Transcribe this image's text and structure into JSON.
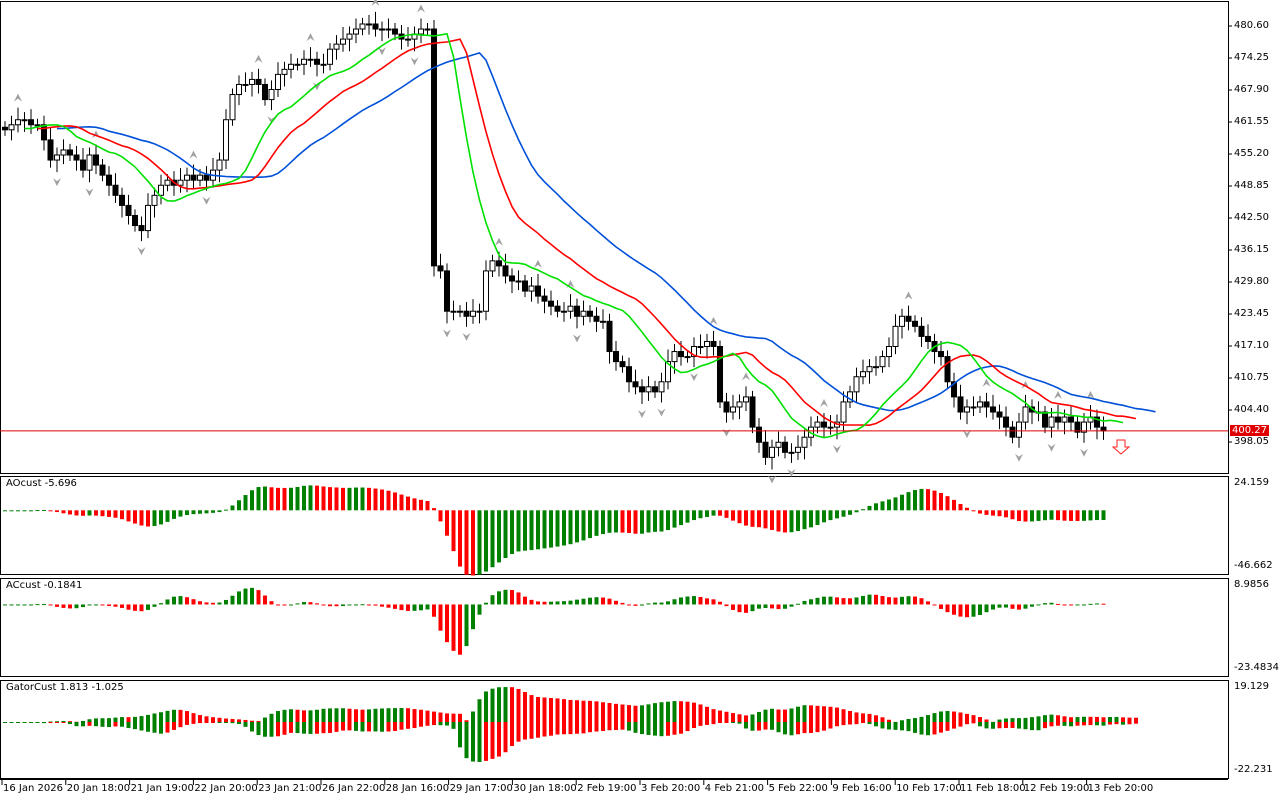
{
  "chart_data": {
    "type": "candlestick",
    "last_price": "400.27",
    "y_ticks": [
      "480.60",
      "474.25",
      "467.90",
      "461.55",
      "455.20",
      "448.85",
      "442.50",
      "436.15",
      "429.80",
      "423.45",
      "417.10",
      "410.75",
      "404.40",
      "398.05"
    ],
    "ylim": [
      393.0,
      484.0
    ],
    "x_ticks": [
      "16 Jan 2026",
      "20 Jan 18:00",
      "21 Jan 19:00",
      "22 Jan 20:00",
      "23 Jan 21:00",
      "26 Jan 22:00",
      "28 Jan 16:00",
      "29 Jan 17:00",
      "30 Jan 18:00",
      "2 Feb 19:00",
      "3 Feb 20:00",
      "4 Feb 21:00",
      "5 Feb 22:00",
      "9 Feb 16:00",
      "10 Feb 17:00",
      "11 Feb 18:00",
      "12 Feb 19:00",
      "13 Feb 20:00"
    ],
    "closes": [
      460,
      461,
      462,
      462,
      461,
      461,
      458,
      454,
      455,
      456,
      455,
      454,
      452,
      455,
      453,
      451,
      449,
      447,
      445,
      443,
      441,
      440,
      445,
      447,
      449,
      450,
      449,
      450,
      451,
      450,
      451,
      450,
      452,
      454,
      462,
      467,
      469,
      469,
      470,
      469,
      466,
      468,
      471,
      472,
      473,
      473,
      474,
      474,
      473,
      473,
      476,
      477,
      478,
      479,
      480,
      481,
      481,
      480,
      480,
      480,
      479,
      478,
      478,
      479,
      480,
      480,
      433,
      432,
      424,
      424,
      424,
      423,
      424,
      424,
      432,
      434,
      433,
      431,
      430,
      430,
      428,
      429,
      427,
      426,
      425,
      424,
      424,
      425,
      423,
      424,
      423,
      422,
      422,
      416,
      414,
      413,
      410,
      409,
      408,
      409,
      408,
      410,
      414,
      416,
      415,
      415,
      417,
      417,
      418,
      417,
      406,
      404,
      405,
      406,
      407,
      401,
      398,
      395,
      397,
      398,
      396,
      396,
      397,
      399,
      401,
      402,
      401,
      401,
      402,
      406,
      408,
      411,
      412,
      413,
      413,
      415,
      417,
      421,
      423,
      422,
      421,
      419,
      418,
      416,
      415,
      410,
      407,
      404,
      405,
      405,
      406,
      405,
      404,
      403,
      401,
      399,
      402,
      405,
      404,
      404,
      401,
      403,
      402,
      403,
      402,
      400,
      402,
      403,
      401,
      400.27
    ],
    "series_colors": {
      "jaw": "#0050d8",
      "teeth": "#ff0000",
      "lips": "#00e000",
      "up": "#008000",
      "down": "#ff0000"
    },
    "panes": [
      {
        "name": "AOcust",
        "title": "AOcust -5.696",
        "top": "24.159",
        "bottom": "-46.662"
      },
      {
        "name": "ACcust",
        "title": "ACcust -0.1841",
        "top": "8.9856",
        "bottom": "-23.4834"
      },
      {
        "name": "GatorCust",
        "title": "GatorCust 1.813 -1.025",
        "top": "19.129",
        "bottom": "-22.231"
      }
    ]
  }
}
